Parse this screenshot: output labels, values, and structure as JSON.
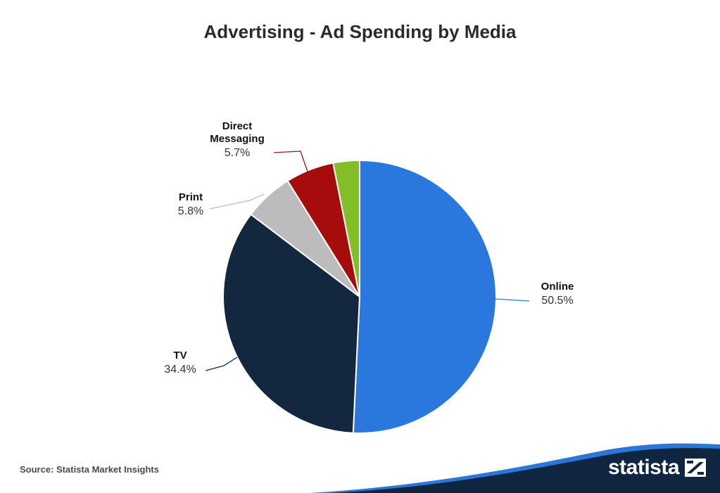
{
  "title": "Advertising - Ad Spending by Media",
  "source": "Source: Statista Market Insights",
  "brand": {
    "name": "statista",
    "logo_icon": "statista-logo-mark-icon"
  },
  "colors": {
    "footer_navy": "#0f2540",
    "footer_accent": "#2b77d8"
  },
  "chart_data": {
    "type": "pie",
    "title": "Advertising - Ad Spending by Media",
    "slices": [
      {
        "name": "Online",
        "name_lines": [
          "Online"
        ],
        "value": 50.5,
        "value_label": "50.5%",
        "color": "#2a78dd"
      },
      {
        "name": "TV",
        "name_lines": [
          "TV"
        ],
        "value": 34.4,
        "value_label": "34.4%",
        "color": "#13283f"
      },
      {
        "name": "Print",
        "name_lines": [
          "Print"
        ],
        "value": 5.8,
        "value_label": "5.8%",
        "color": "#bcbcbc"
      },
      {
        "name": "Direct Messaging",
        "name_lines": [
          "Direct",
          "Messaging"
        ],
        "value": 5.7,
        "value_label": "5.7%",
        "color": "#a60c0c"
      },
      {
        "name": "",
        "name_lines": [],
        "value": 3.1,
        "value_label": "",
        "color": "#83bd27"
      }
    ]
  }
}
